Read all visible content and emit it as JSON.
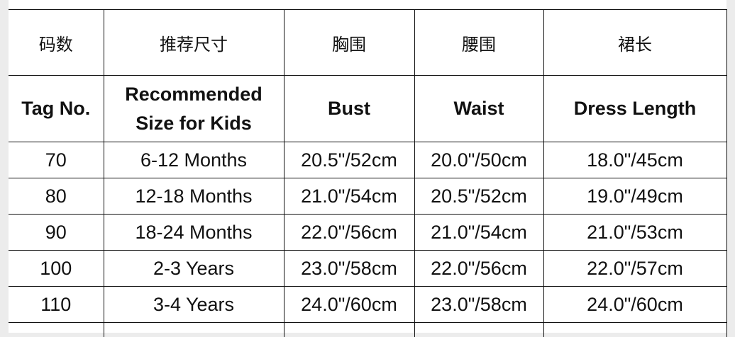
{
  "headers_cn": [
    "码数",
    "推荐尺寸",
    "胸围",
    "腰围",
    "裙长"
  ],
  "headers_en": [
    "Tag No.",
    "Recommended Size for Kids",
    "Bust",
    "Waist",
    "Dress Length"
  ],
  "rows": [
    [
      "70",
      "6-12 Months",
      "20.5\"/52cm",
      "20.0\"/50cm",
      "18.0\"/45cm"
    ],
    [
      "80",
      "12-18 Months",
      "21.0\"/54cm",
      "20.5\"/52cm",
      "19.0\"/49cm"
    ],
    [
      "90",
      "18-24 Months",
      "22.0\"/56cm",
      "21.0\"/54cm",
      "21.0\"/53cm"
    ],
    [
      "100",
      "2-3 Years",
      "23.0\"/58cm",
      "22.0\"/56cm",
      "22.0\"/57cm"
    ],
    [
      "110",
      "3-4 Years",
      "24.0\"/60cm",
      "23.0\"/58cm",
      "24.0\"/60cm"
    ]
  ]
}
